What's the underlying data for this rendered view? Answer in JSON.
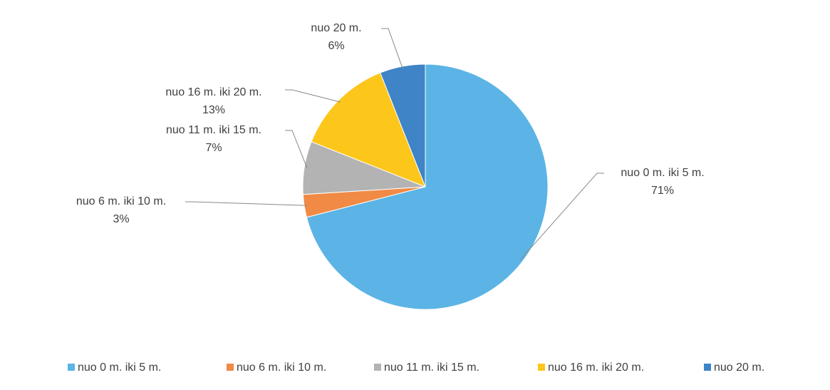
{
  "chart_data": {
    "type": "pie",
    "categories": [
      "nuo 0 m. iki 5 m.",
      "nuo 6 m. iki 10 m.",
      "nuo 11 m. iki 15 m.",
      "nuo 16 m. iki 20 m.",
      "nuo 20 m."
    ],
    "values": [
      71,
      3,
      7,
      13,
      6
    ],
    "value_labels": [
      "71%",
      "3%",
      "7%",
      "13%",
      "6%"
    ],
    "colors": [
      "#5bb4e5",
      "#f08a45",
      "#b3b3b3",
      "#fdc61a",
      "#3e84c6"
    ],
    "legend": "bottom"
  }
}
